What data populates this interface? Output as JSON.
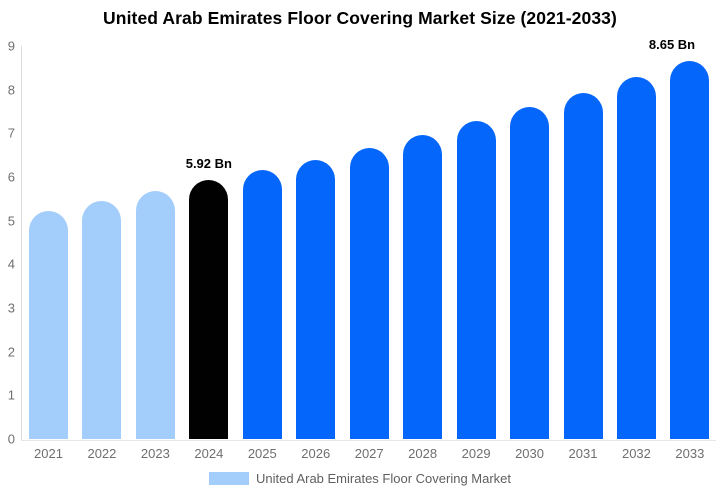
{
  "chart_data": {
    "type": "bar",
    "title": "United Arab Emirates Floor Covering Market Size (2021-2033)",
    "categories": [
      "2021",
      "2022",
      "2023",
      "2024",
      "2025",
      "2026",
      "2027",
      "2028",
      "2029",
      "2030",
      "2031",
      "2032",
      "2033"
    ],
    "values": [
      5.22,
      5.45,
      5.68,
      5.92,
      6.15,
      6.4,
      6.67,
      6.96,
      7.28,
      7.6,
      7.93,
      8.28,
      8.65
    ],
    "unit": "Bn",
    "bar_roles": [
      "past",
      "past",
      "past",
      "current",
      "forecast",
      "forecast",
      "forecast",
      "forecast",
      "forecast",
      "forecast",
      "forecast",
      "forecast",
      "forecast"
    ],
    "palette": {
      "past": "#a3cdfb",
      "current": "#010101",
      "forecast": "#0566fb"
    },
    "annotations": [
      {
        "index": 3,
        "label": "5.92 Bn"
      },
      {
        "index": 12,
        "label": "8.65 Bn"
      }
    ],
    "xlabel": "",
    "ylabel": "",
    "ylim": [
      0,
      9
    ],
    "yticks": [
      0,
      1,
      2,
      3,
      4,
      5,
      6,
      7,
      8,
      9
    ],
    "grid": false,
    "legend": {
      "position": "bottom",
      "label": "United Arab Emirates Floor Covering Market",
      "swatch_color": "#a3cdfb"
    }
  },
  "colors": {
    "background": "#ffffff",
    "axis_line": "#dcdcdc",
    "tick_text": "#6f6f6f",
    "title_text": "#000000"
  }
}
